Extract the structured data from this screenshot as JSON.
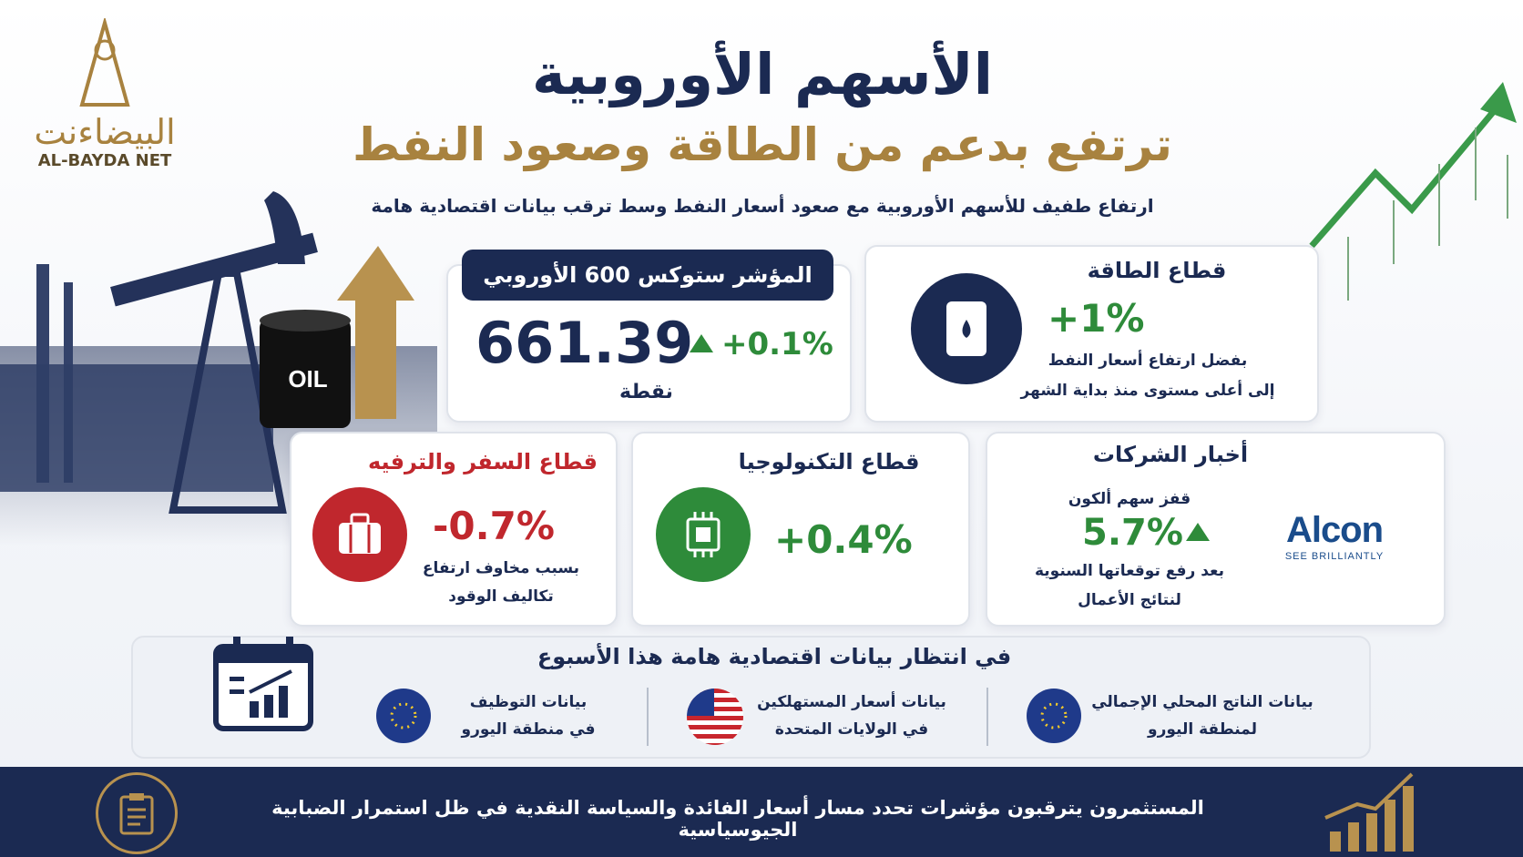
{
  "header": {
    "logo_ar": "البيضاءنت",
    "logo_en": "AL-BAYDA NET",
    "title": "الأسهم الأوروبية",
    "subtitle": "ترتفع بدعم من الطاقة وصعود النفط",
    "description": "ارتفاع طفيف للأسهم الأوروبية مع صعود أسعار النفط وسط ترقب بيانات اقتصادية هامة",
    "barrel_label": "OIL"
  },
  "index_card": {
    "label": "المؤشر ستوكس 600 الأوروبي",
    "value": "661.39",
    "change": "+0.1%",
    "unit": "نقطة"
  },
  "energy_card": {
    "title": "قطاع الطاقة",
    "value": "+1%",
    "note": [
      "بفضل ارتفاع أسعار النفط",
      "إلى أعلى مستوى منذ بداية الشهر"
    ]
  },
  "companies_card": {
    "title": "أخبار الشركات",
    "lead": "قفز سهم ألكون",
    "value": "5.7%",
    "note": [
      "بعد رفع توقعاتها السنوية",
      "لنتائج الأعمال"
    ],
    "brand": "Alcon",
    "tagline": "SEE BRILLIANTLY"
  },
  "tech_card": {
    "title": "قطاع التكنولوجيا",
    "value": "+0.4%"
  },
  "travel_card": {
    "title": "قطاع السفر والترفيه",
    "value": "-0.7%",
    "note": [
      "بسبب مخاوف ارتفاع",
      "تكاليف الوقود"
    ]
  },
  "calendar": {
    "title": "في انتظار بيانات اقتصادية هامة هذا الأسبوع",
    "items": [
      [
        "بيانات الناتج المحلي الإجمالي",
        "لمنطقة اليورو"
      ],
      [
        "بيانات أسعار المستهلكين",
        "في الولايات المتحدة"
      ],
      [
        "بيانات التوظيف",
        "في منطقة اليورو"
      ]
    ]
  },
  "footer": {
    "text": "المستثمرون يترقبون مؤشرات تحدد مسار أسعار الفائدة والسياسة النقدية في ظل استمرار الضبابية الجيوسياسية"
  }
}
